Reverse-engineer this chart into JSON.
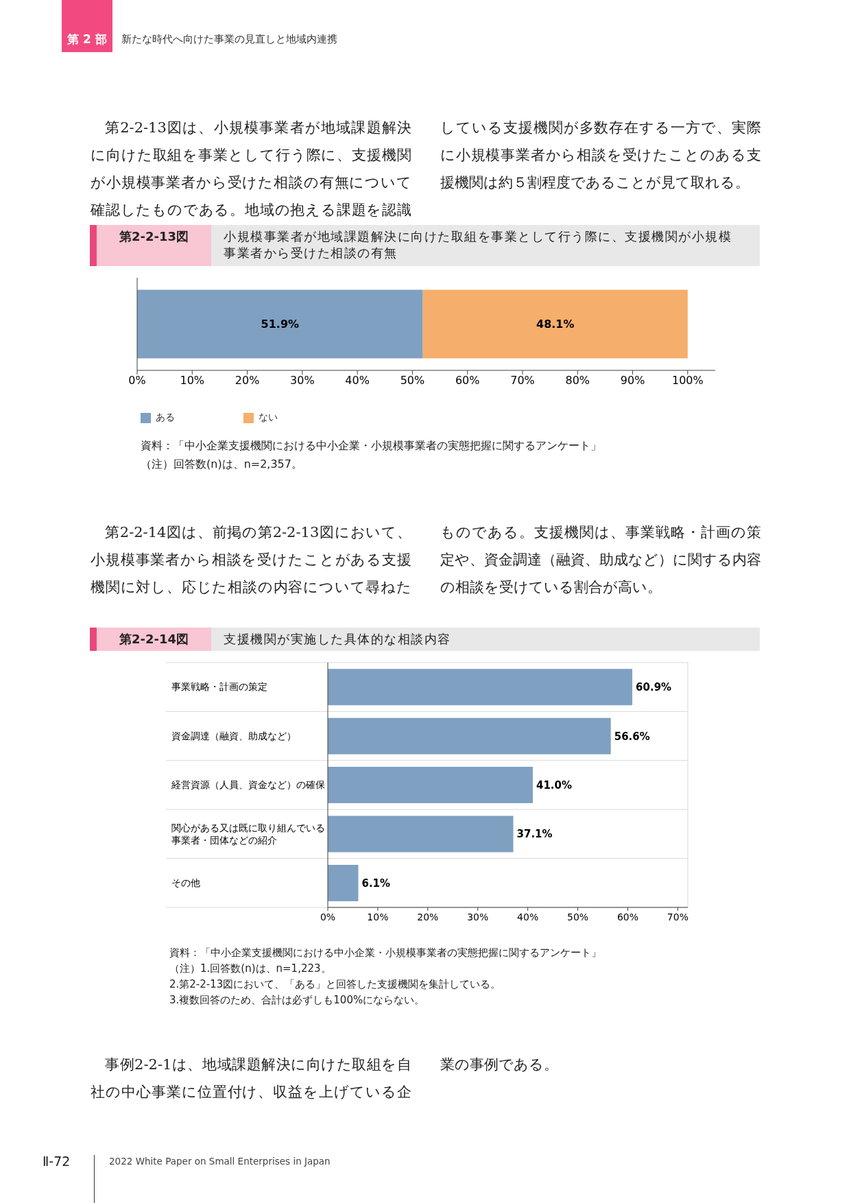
{
  "chart_data": [
    {
      "type": "bar",
      "orientation": "horizontal",
      "stacked": true,
      "subtitle": "第2-2-13図",
      "title": "小規模事業者が地域課題解決に向けた取組を事業として行う際に、支援機関が小規模事業者から受けた相談の有無",
      "categories": [
        null
      ],
      "series": [
        {
          "name": "ある",
          "color": "#7fa0c1",
          "values": [
            51.9
          ],
          "value_labels": [
            "51.9%"
          ]
        },
        {
          "name": "ない",
          "color": "#f5ae6b",
          "values": [
            48.1
          ],
          "value_labels": [
            "48.1%"
          ]
        }
      ],
      "xlim": [
        0,
        105
      ],
      "xticks": [
        {
          "value": 0,
          "label": "0%"
        },
        {
          "value": 10,
          "label": "10%"
        },
        {
          "value": 20,
          "label": "20%"
        },
        {
          "value": 30,
          "label": "30%"
        },
        {
          "value": 40,
          "label": "40%"
        },
        {
          "value": 50,
          "label": "50%"
        },
        {
          "value": 60,
          "label": "60%"
        },
        {
          "value": 70,
          "label": "70%"
        },
        {
          "value": 80,
          "label": "80%"
        },
        {
          "value": 90,
          "label": "90%"
        },
        {
          "value": 100,
          "label": "100%"
        }
      ],
      "legend": "bottom left",
      "annotations": [
        "第 2 部",
        "新たな時代へ向けた事業の見直しと地域内連携",
        "第2-2-13図は、小規模事業者が地域課題解決に向けた取組を事業として行う際に、支援機関が小規模事業者から受けた相談の有無について確認したものである。地域の抱える課題を認識している支援機関が多数存在する一方で、実際に小規模事業者から相談を受けたことのある支援機関は約５割程度であることが見て取れる。",
        "資料：「中小企業支援機関における中小企業・小規模事業者の実態把握に関するアンケート」",
        "（注）回答数(n)は、n=2,357。"
      ]
    },
    {
      "type": "bar",
      "orientation": "horizontal",
      "subtitle": "第2-2-14図",
      "title": "支援機関が実施した具体的な相談内容",
      "categories": [
        "事業戦略・計画の策定",
        "資金調達（融資、助成など）",
        "経営資源（人員、資金など）の確保",
        "関心がある又は既に取り組んでいる事業者・団体などの紹介",
        "その他"
      ],
      "values": [
        60.9,
        56.6,
        41.0,
        37.1,
        6.1
      ],
      "color": "#7fa0c1",
      "value_labels": [
        "60.9%",
        "56.6%",
        "41.0%",
        "37.1%",
        "6.1%"
      ],
      "xlim": [
        0,
        72
      ],
      "xticks": [
        {
          "value": 0,
          "label": "0%"
        },
        {
          "value": 10,
          "label": "10%"
        },
        {
          "value": 20,
          "label": "20%"
        },
        {
          "value": 30,
          "label": "30%"
        },
        {
          "value": 40,
          "label": "40%"
        },
        {
          "value": 50,
          "label": "50%"
        },
        {
          "value": 60,
          "label": "60%"
        },
        {
          "value": 70,
          "label": "70%"
        }
      ],
      "grid": "y",
      "annotations": [
        "第2-2-14図は、前掲の第2-2-13図において、小規模事業者から相談を受けたことがある支援機関に対し、応じた相談の内容について尋ねたものである。支援機関は、事業戦略・計画の策定や、資金調達（融資、助成など）に関する内容の相談を受けている割合が高い。",
        "資料：「中小企業支援機関における中小企業・小規模事業者の実態把握に関するアンケート」",
        "（注）1.回答数(n)は、n=1,223。",
        "2.第2-2-13図において、「ある」と回答した支援機関を集計している。",
        "3.複数回答のため、合計は必ずしも100%にならない。",
        "事例2-2-1は、地域課題解決に向けた取組を自社の中心事業に位置付け、収益を上げている企業の事例である。",
        "Ⅱ-72",
        "2022 White Paper on Small Enterprises in Japan"
      ]
    }
  ]
}
